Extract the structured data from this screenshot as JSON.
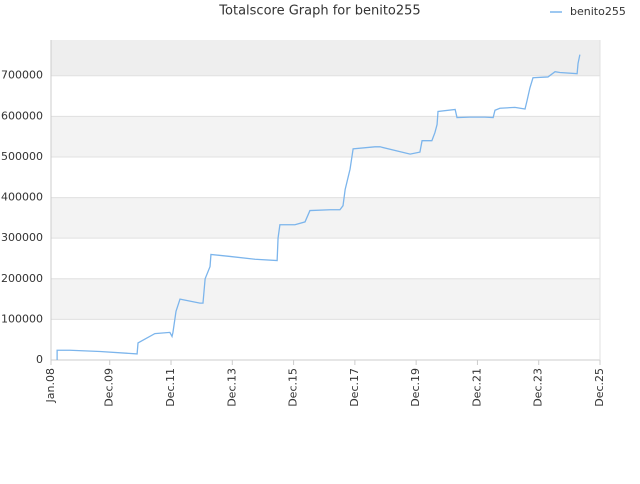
{
  "chart_data": {
    "type": "line",
    "title": "Totalscore Graph for benito255",
    "x": [
      2008.2,
      2008.2,
      2008.62,
      2009.6,
      2010.81,
      2010.84,
      2011.39,
      2011.88,
      2011.95,
      2011.98,
      2012.08,
      2012.21,
      2012.86,
      2012.96,
      2013.03,
      2013.19,
      2013.22,
      2013.84,
      2014.66,
      2015.38,
      2015.41,
      2015.47,
      2015.96,
      2016.29,
      2016.45,
      2017.11,
      2017.43,
      2017.53,
      2017.6,
      2017.76,
      2017.86,
      2018.57,
      2018.74,
      2019.72,
      2020.04,
      2020.11,
      2020.43,
      2020.53,
      2020.6,
      2020.63,
      2021.19,
      2021.25,
      2021.67,
      2022.16,
      2022.43,
      2022.49,
      2022.65,
      2023.14,
      2023.47,
      2023.54,
      2023.63,
      2023.73,
      2024.22,
      2024.45,
      2024.61,
      2025.17,
      2025.2,
      2025.26
    ],
    "series": [
      {
        "name": "benito255",
        "color": "#7cb5ec",
        "values": [
          0,
          24000,
          24000,
          21000,
          15000,
          42000,
          65000,
          68000,
          58000,
          68000,
          120000,
          150000,
          140000,
          140000,
          200000,
          230000,
          260000,
          255000,
          248000,
          245000,
          300000,
          333000,
          333000,
          340000,
          368000,
          370000,
          370000,
          380000,
          420000,
          470000,
          520000,
          525000,
          525000,
          507000,
          512000,
          540000,
          540000,
          560000,
          580000,
          612000,
          617000,
          597000,
          598000,
          598000,
          597000,
          615000,
          620000,
          622000,
          618000,
          640000,
          670000,
          695000,
          697000,
          710000,
          708000,
          705000,
          730000,
          752000
        ]
      }
    ],
    "xlim": [
      2008.0,
      2025.917
    ],
    "xticks": [
      {
        "value": 2008.0,
        "label": "Jan.08"
      },
      {
        "value": 2009.917,
        "label": "Dec.09"
      },
      {
        "value": 2011.917,
        "label": "Dec.11"
      },
      {
        "value": 2013.917,
        "label": "Dec.13"
      },
      {
        "value": 2015.917,
        "label": "Dec.15"
      },
      {
        "value": 2017.917,
        "label": "Dec.17"
      },
      {
        "value": 2019.917,
        "label": "Dec.19"
      },
      {
        "value": 2021.917,
        "label": "Dec.21"
      },
      {
        "value": 2023.917,
        "label": "Dec.23"
      },
      {
        "value": 2025.917,
        "label": "Dec.25"
      }
    ],
    "ylim": [
      0,
      788000
    ],
    "yticks": [
      0,
      100000,
      200000,
      300000,
      400000,
      500000,
      600000,
      700000
    ],
    "grid": true,
    "legend": "top-right"
  }
}
